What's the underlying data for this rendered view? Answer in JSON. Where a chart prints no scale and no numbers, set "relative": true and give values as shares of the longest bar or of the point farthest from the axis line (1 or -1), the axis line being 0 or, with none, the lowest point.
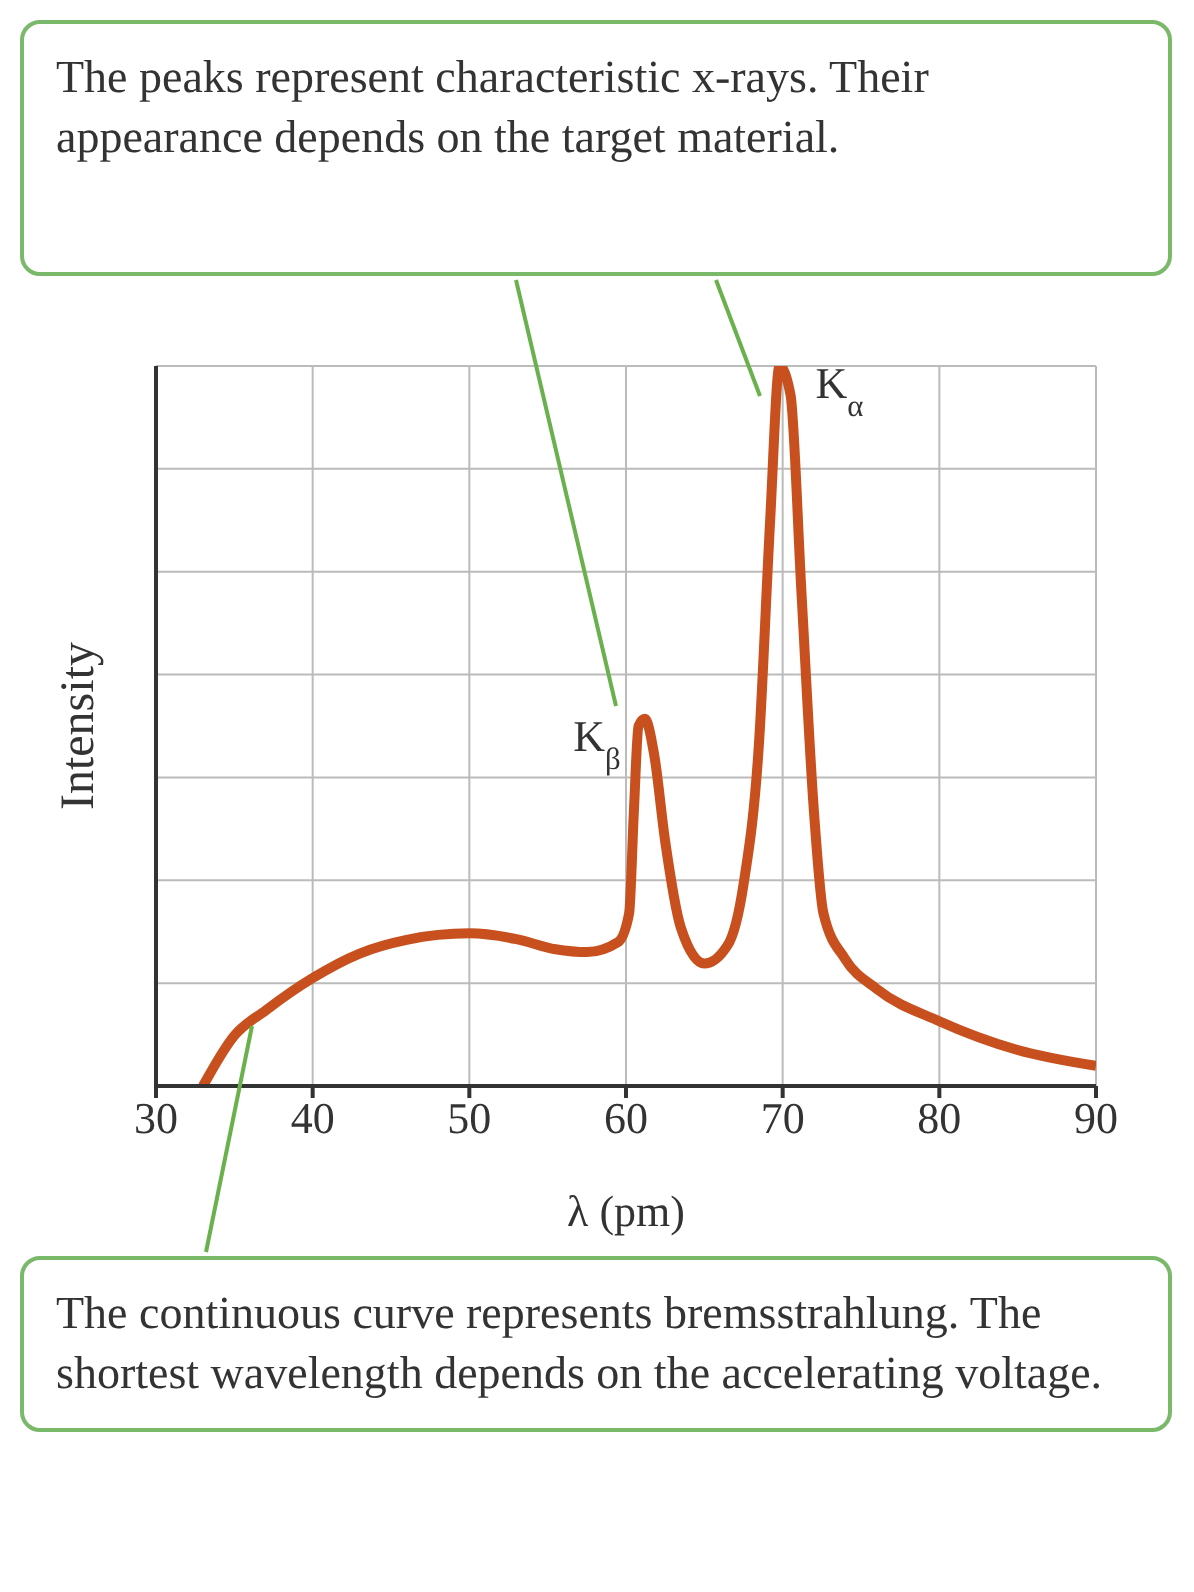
{
  "chart_data": {
    "type": "line",
    "relative": true,
    "xlabel": "λ (pm)",
    "ylabel": "Intensity",
    "xlim": [
      30,
      90
    ],
    "xticks": [
      30,
      40,
      50,
      60,
      70,
      80,
      90
    ],
    "grid": true,
    "marker": "none",
    "line_style": "solid",
    "x": [
      33,
      35,
      37,
      40,
      43,
      46,
      50,
      53,
      55.5,
      57.5,
      59.5,
      60.2,
      60.5,
      60.8,
      61.2,
      61.8,
      62.5,
      63.5,
      65,
      66.5,
      67.5,
      68.5,
      69.2,
      69.8,
      70.5,
      71.2,
      72,
      72.6,
      74,
      76,
      80,
      85,
      90
    ],
    "series": [
      {
        "color": "#c8501e",
        "values": [
          0,
          0.07,
          0.105,
          0.15,
          0.184,
          0.203,
          0.212,
          0.204,
          0.19,
          0.186,
          0.2,
          0.24,
          0.38,
          0.5,
          0.51,
          0.46,
          0.34,
          0.22,
          0.17,
          0.196,
          0.28,
          0.48,
          0.785,
          1,
          0.96,
          0.685,
          0.38,
          0.24,
          0.176,
          0.135,
          0.09,
          0.05,
          0.028
        ]
      }
    ],
    "annotations": [
      "The peaks represent characteristic x-rays. Their appearance depends on the target material.",
      {
        "text": "K$_{β}$",
        "x": 61.2,
        "y": 0.51
      },
      {
        "text": "K$_{α}$",
        "x": 69.8,
        "y": 1
      },
      "The continuous curve represents bremsstrahlung. The shortest wavelength depends on the accelerating voltage."
    ]
  }
}
